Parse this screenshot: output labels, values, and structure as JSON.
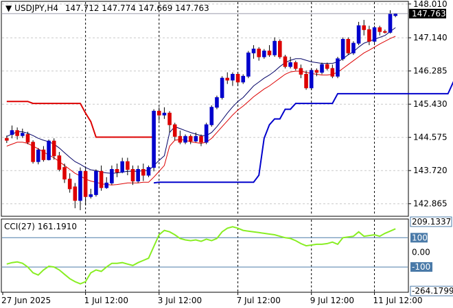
{
  "header": {
    "symbol": "USDJPY,H4",
    "ohlc": "147.712 147.774 147.669 147.763"
  },
  "current_price_label": "147.763",
  "chart_data": [
    {
      "type": "candlestick",
      "title": "USDJPY,H4",
      "ylim": [
        142.56,
        148.06
      ],
      "y_ticks": [
        "148.010",
        "147.140",
        "146.285",
        "145.430",
        "144.575",
        "143.720",
        "142.865"
      ],
      "x_ticks": [
        "27 Jun 2025",
        "1 Jul 12:00",
        "3 Jul 12:00",
        "7 Jul 12:00",
        "9 Jul 12:00",
        "11 Jul 12:00"
      ],
      "current_price": 147.763,
      "grid": true,
      "colors": {
        "bull": "#0000cc",
        "bear": "#dd0000",
        "envelope_upper": "#000066",
        "envelope_lower": "#dd0000",
        "stop_high": "#dd0000",
        "stop_low": "#0000cc"
      },
      "candles": [
        [
          144.55,
          144.62,
          144.43,
          144.5
        ],
        [
          144.65,
          144.88,
          144.55,
          144.75
        ],
        [
          144.75,
          144.83,
          144.52,
          144.62
        ],
        [
          144.62,
          144.8,
          144.56,
          144.68
        ],
        [
          144.65,
          144.72,
          144.4,
          144.45
        ],
        [
          144.45,
          144.5,
          143.9,
          143.95
        ],
        [
          143.95,
          144.3,
          143.88,
          144.25
        ],
        [
          144.25,
          144.35,
          143.95,
          144.0
        ],
        [
          144.0,
          144.52,
          143.98,
          144.48
        ],
        [
          144.48,
          144.55,
          144.0,
          144.1
        ],
        [
          144.1,
          144.2,
          143.7,
          143.75
        ],
        [
          143.8,
          143.9,
          143.4,
          143.5
        ],
        [
          143.5,
          143.65,
          143.15,
          143.25
        ],
        [
          143.3,
          143.4,
          142.75,
          142.95
        ],
        [
          142.95,
          143.8,
          142.7,
          143.7
        ],
        [
          143.7,
          143.78,
          142.82,
          143.05
        ],
        [
          143.05,
          143.25,
          143.0,
          143.1
        ],
        [
          143.1,
          143.75,
          143.05,
          143.7
        ],
        [
          143.7,
          143.85,
          143.2,
          143.28
        ],
        [
          143.28,
          143.55,
          143.25,
          143.4
        ],
        [
          143.4,
          143.85,
          143.35,
          143.75
        ],
        [
          143.75,
          143.9,
          143.55,
          143.68
        ],
        [
          143.68,
          144.05,
          143.65,
          143.95
        ],
        [
          143.95,
          144.05,
          143.6,
          143.75
        ],
        [
          143.75,
          143.85,
          143.35,
          143.45
        ],
        [
          143.45,
          143.85,
          143.4,
          143.75
        ],
        [
          143.75,
          143.9,
          143.45,
          143.6
        ],
        [
          143.6,
          143.85,
          143.55,
          143.8
        ],
        [
          143.8,
          145.3,
          143.7,
          145.25
        ],
        [
          145.25,
          145.35,
          145.0,
          145.15
        ],
        [
          145.15,
          145.35,
          145.05,
          145.2
        ],
        [
          145.2,
          145.25,
          144.7,
          144.9
        ],
        [
          144.9,
          144.95,
          144.5,
          144.6
        ],
        [
          144.6,
          144.75,
          144.4,
          144.45
        ],
        [
          144.45,
          144.65,
          144.4,
          144.6
        ],
        [
          144.6,
          144.65,
          144.4,
          144.48
        ],
        [
          144.48,
          144.7,
          144.45,
          144.6
        ],
        [
          144.6,
          144.65,
          144.35,
          144.45
        ],
        [
          144.45,
          144.95,
          144.4,
          144.9
        ],
        [
          144.9,
          145.4,
          144.85,
          145.35
        ],
        [
          145.35,
          145.65,
          145.3,
          145.6
        ],
        [
          145.6,
          146.15,
          145.55,
          146.1
        ],
        [
          146.1,
          146.25,
          145.95,
          146.05
        ],
        [
          146.05,
          146.25,
          145.9,
          146.2
        ],
        [
          146.2,
          146.25,
          145.9,
          146.0
        ],
        [
          146.0,
          146.2,
          145.95,
          146.15
        ],
        [
          146.15,
          146.8,
          146.1,
          146.75
        ],
        [
          146.75,
          146.95,
          146.6,
          146.85
        ],
        [
          146.85,
          146.9,
          146.55,
          146.65
        ],
        [
          146.65,
          146.85,
          146.6,
          146.8
        ],
        [
          146.8,
          146.95,
          146.65,
          146.7
        ],
        [
          146.7,
          147.15,
          146.65,
          147.05
        ],
        [
          147.05,
          147.1,
          146.6,
          146.65
        ],
        [
          146.65,
          146.7,
          146.35,
          146.4
        ],
        [
          146.4,
          146.65,
          146.35,
          146.5
        ],
        [
          146.5,
          146.55,
          146.3,
          146.35
        ],
        [
          146.35,
          146.45,
          146.1,
          146.2
        ],
        [
          146.2,
          146.3,
          145.8,
          145.85
        ],
        [
          145.85,
          146.35,
          145.8,
          146.3
        ],
        [
          146.3,
          146.35,
          146.15,
          146.25
        ],
        [
          146.25,
          146.5,
          146.2,
          146.45
        ],
        [
          146.45,
          146.5,
          146.3,
          146.35
        ],
        [
          146.35,
          146.45,
          146.1,
          146.15
        ],
        [
          146.15,
          146.65,
          146.1,
          146.6
        ],
        [
          146.6,
          147.15,
          146.55,
          147.1
        ],
        [
          147.1,
          147.15,
          146.7,
          146.75
        ],
        [
          146.75,
          147.05,
          146.7,
          147.0
        ],
        [
          147.0,
          147.55,
          146.95,
          147.45
        ],
        [
          147.45,
          147.6,
          147.2,
          147.35
        ],
        [
          147.35,
          147.45,
          146.95,
          147.05
        ],
        [
          147.05,
          147.45,
          147.0,
          147.4
        ],
        [
          147.4,
          147.45,
          147.2,
          147.3
        ],
        [
          147.3,
          147.35,
          147.25,
          147.28
        ],
        [
          147.28,
          147.85,
          147.25,
          147.75
        ],
        [
          147.712,
          147.774,
          147.669,
          147.763
        ]
      ],
      "series": [
        {
          "values": [
            144.6,
            144.66,
            144.72,
            144.72,
            144.68,
            144.62,
            144.55,
            144.5,
            144.46,
            144.4,
            144.3,
            144.18,
            144.06,
            143.95,
            143.88,
            143.8,
            143.74,
            143.72,
            143.68,
            143.66,
            143.65,
            143.66,
            143.68,
            143.7,
            143.7,
            143.7,
            143.72,
            143.72,
            143.85,
            143.98,
            144.1,
            144.7,
            144.85,
            144.8,
            144.75,
            144.7,
            144.66,
            144.62,
            144.62,
            144.7,
            144.85,
            145.02,
            145.2,
            145.36,
            145.5,
            145.6,
            145.75,
            145.9,
            146.0,
            146.1,
            146.18,
            146.28,
            146.4,
            146.5,
            146.56,
            146.6,
            146.6,
            146.56,
            146.52,
            146.5,
            146.48,
            146.48,
            146.48,
            146.52,
            146.6,
            146.7,
            146.78,
            146.9,
            147.0,
            147.05,
            147.1,
            147.15,
            147.2,
            147.3,
            147.4
          ]
        },
        {
          "values": [
            144.35,
            144.4,
            144.45,
            144.45,
            144.42,
            144.35,
            144.28,
            144.2,
            144.12,
            144.05,
            143.95,
            143.85,
            143.75,
            143.65,
            143.58,
            143.5,
            143.45,
            143.42,
            143.38,
            143.36,
            143.35,
            143.36,
            143.38,
            143.4,
            143.4,
            143.4,
            143.42,
            143.42,
            143.55,
            143.7,
            143.85,
            144.35,
            144.5,
            144.52,
            144.5,
            144.46,
            144.44,
            144.42,
            144.45,
            144.55,
            144.7,
            144.85,
            145.0,
            145.15,
            145.28,
            145.38,
            145.5,
            145.62,
            145.72,
            145.82,
            145.9,
            146.0,
            146.1,
            146.2,
            146.26,
            146.28,
            146.28,
            146.25,
            146.22,
            146.2,
            146.18,
            146.18,
            146.2,
            146.25,
            146.35,
            146.45,
            146.55,
            146.65,
            146.75,
            146.82,
            146.9,
            146.98,
            147.05,
            147.12,
            147.18
          ]
        },
        {
          "values": [
            145.5,
            145.5,
            145.5,
            145.5,
            145.5,
            145.45,
            145.45,
            145.45,
            145.45,
            145.45,
            145.45,
            145.45,
            145.45,
            145.45,
            145.45,
            145.2,
            144.98,
            144.58,
            144.58,
            144.58,
            144.58,
            144.58,
            144.58,
            144.58,
            144.58,
            144.58,
            144.58,
            144.58,
            144.58
          ]
        },
        {
          "values": [
            143.4,
            143.42,
            143.42,
            143.42,
            143.42,
            143.42,
            143.42,
            143.42,
            143.42,
            143.42,
            143.42,
            143.42,
            143.42,
            143.42,
            143.42,
            143.42,
            143.42,
            143.42,
            143.42,
            143.42,
            143.6,
            144.55,
            144.9,
            145.05,
            145.05,
            145.3,
            145.3,
            145.45,
            145.45,
            145.45,
            145.45,
            145.45,
            145.45,
            145.45,
            145.45,
            145.7,
            145.7,
            145.7,
            145.7,
            145.7,
            145.7,
            145.7,
            145.7,
            145.7,
            145.7,
            145.7,
            145.7,
            145.7,
            145.7,
            145.7,
            145.7,
            145.7,
            145.7,
            145.7,
            145.7,
            145.7,
            145.7,
            146.0,
            146.0,
            146.0,
            146.0,
            146.0,
            146.0,
            146.0,
            146.0,
            146.2,
            146.25
          ]
        }
      ]
    },
    {
      "type": "line",
      "title": "CCI(27) 161.1910",
      "ylim": [
        -268,
        223
      ],
      "y_ticks": [
        "209.1337",
        "100",
        "0.00",
        "-100",
        "-264.1799"
      ],
      "levels": [
        100,
        -100
      ],
      "colors": {
        "line": "#88ee22"
      },
      "series": [
        {
          "values": [
            -80,
            -70,
            -65,
            -75,
            -100,
            -140,
            -155,
            -120,
            -95,
            -100,
            -120,
            -150,
            -180,
            -200,
            -215,
            -200,
            -140,
            -120,
            -130,
            -100,
            -75,
            -75,
            -70,
            -80,
            -90,
            -70,
            -55,
            -40,
            40,
            120,
            150,
            140,
            120,
            95,
            85,
            80,
            85,
            75,
            90,
            80,
            95,
            140,
            165,
            175,
            165,
            150,
            145,
            140,
            135,
            130,
            125,
            120,
            110,
            100,
            95,
            80,
            60,
            45,
            50,
            55,
            55,
            60,
            70,
            55,
            100,
            105,
            110,
            140,
            110,
            115,
            120,
            110,
            130,
            145,
            161
          ]
        }
      ]
    }
  ]
}
